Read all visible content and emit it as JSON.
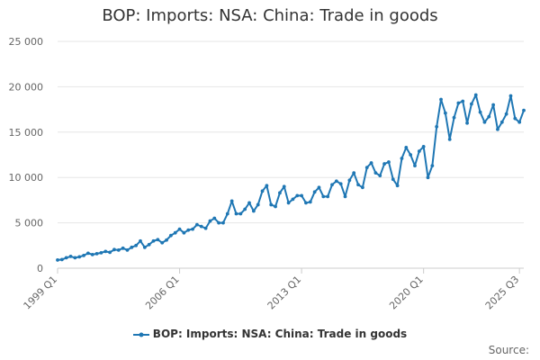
{
  "chart_data": {
    "type": "line",
    "title": "BOP: Imports: NSA: China: Trade in goods",
    "source_label": "Source:",
    "series": [
      {
        "name": "BOP: Imports: NSA: China: Trade in goods",
        "color": "#1f77b4",
        "values": [
          900,
          950,
          1150,
          1300,
          1150,
          1250,
          1400,
          1650,
          1500,
          1600,
          1700,
          1850,
          1750,
          2050,
          2000,
          2200,
          2000,
          2300,
          2500,
          3000,
          2300,
          2600,
          3000,
          3150,
          2800,
          3100,
          3600,
          3900,
          4300,
          3900,
          4200,
          4300,
          4800,
          4600,
          4400,
          5200,
          5500,
          5000,
          5000,
          6000,
          7400,
          6000,
          6000,
          6500,
          7200,
          6300,
          7000,
          8500,
          9100,
          7000,
          6800,
          8300,
          9000,
          7200,
          7600,
          8000,
          8000,
          7200,
          7300,
          8400,
          8900,
          7900,
          7900,
          9200,
          9600,
          9300,
          7900,
          9700,
          10500,
          9200,
          8900,
          11100,
          11600,
          10500,
          10200,
          11500,
          11700,
          9800,
          9100,
          12100,
          13300,
          12500,
          11300,
          12900,
          13400,
          10000,
          11300,
          15600,
          18600,
          17100,
          14200,
          16600,
          18200,
          18400,
          16000,
          18100,
          19100,
          17200,
          16100,
          16700,
          18000,
          15300,
          16100,
          17000,
          19000,
          16500,
          16100,
          17400
        ]
      }
    ],
    "x_ticks": [
      "1999 Q1",
      "2006 Q1",
      "2013 Q1",
      "2020 Q1",
      "2025 Q3"
    ],
    "y_ticks": [
      "0",
      "5 000",
      "10 000",
      "15 000",
      "20 000",
      "25 000"
    ],
    "ylim": [
      0,
      25000
    ],
    "xlim_labels": [
      "1999 Q1",
      "2025 Q3"
    ],
    "grid": true,
    "legend_position": "bottom"
  }
}
